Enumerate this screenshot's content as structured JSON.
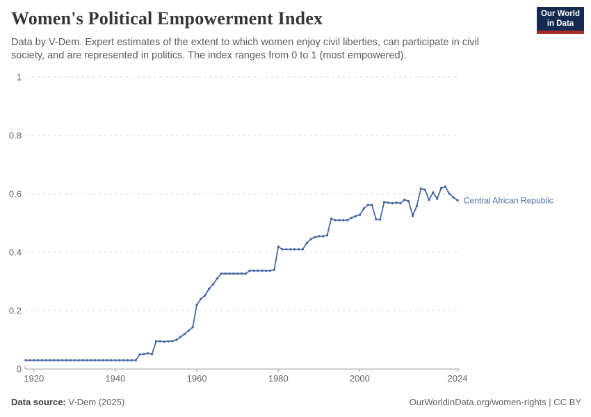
{
  "header": {
    "title": "Women's Political Empowerment Index",
    "subtitle": "Data by V-Dem. Expert estimates of the extent to which women enjoy civil liberties, can participate in civil society, and are represented in politics. The index ranges from 0 to 1 (most empowered)."
  },
  "logo": {
    "line1": "Our World",
    "line2": "in Data",
    "bg_color": "#142a50",
    "accent_color": "#aa2e27"
  },
  "chart_data": {
    "type": "line",
    "title": "Women's Political Empowerment Index",
    "xlabel": "",
    "ylabel": "",
    "x_range": [
      1918,
      2024
    ],
    "ylim": [
      0,
      1
    ],
    "x_ticks": [
      1920,
      1940,
      1960,
      1980,
      2000,
      2024
    ],
    "y_ticks": [
      {
        "v": 0,
        "label": "0"
      },
      {
        "v": 0.2,
        "label": "0.2"
      },
      {
        "v": 0.4,
        "label": "0.4"
      },
      {
        "v": 0.6,
        "label": "0.6"
      },
      {
        "v": 0.8,
        "label": "0.8"
      },
      {
        "v": 1,
        "label": "1"
      }
    ],
    "grid": "horizontal-dashed",
    "legend": "inline-end-label",
    "colors": {
      "line": "#4868a4",
      "gridline": "#dadada",
      "axis": "#9e9e9e",
      "tick_label": "#636363"
    },
    "series": [
      {
        "name": "Central African Republic",
        "points": [
          [
            1918,
            0.03
          ],
          [
            1919,
            0.03
          ],
          [
            1920,
            0.03
          ],
          [
            1921,
            0.03
          ],
          [
            1922,
            0.03
          ],
          [
            1923,
            0.03
          ],
          [
            1924,
            0.03
          ],
          [
            1925,
            0.03
          ],
          [
            1926,
            0.03
          ],
          [
            1927,
            0.03
          ],
          [
            1928,
            0.03
          ],
          [
            1929,
            0.03
          ],
          [
            1930,
            0.03
          ],
          [
            1931,
            0.03
          ],
          [
            1932,
            0.03
          ],
          [
            1933,
            0.03
          ],
          [
            1934,
            0.03
          ],
          [
            1935,
            0.03
          ],
          [
            1936,
            0.03
          ],
          [
            1937,
            0.03
          ],
          [
            1938,
            0.03
          ],
          [
            1939,
            0.03
          ],
          [
            1940,
            0.03
          ],
          [
            1941,
            0.03
          ],
          [
            1942,
            0.03
          ],
          [
            1943,
            0.03
          ],
          [
            1944,
            0.03
          ],
          [
            1945,
            0.03
          ],
          [
            1946,
            0.05
          ],
          [
            1947,
            0.051
          ],
          [
            1948,
            0.054
          ],
          [
            1949,
            0.051
          ],
          [
            1950,
            0.095
          ],
          [
            1951,
            0.095
          ],
          [
            1952,
            0.094
          ],
          [
            1953,
            0.095
          ],
          [
            1954,
            0.096
          ],
          [
            1955,
            0.1
          ],
          [
            1956,
            0.11
          ],
          [
            1957,
            0.12
          ],
          [
            1958,
            0.132
          ],
          [
            1959,
            0.143
          ],
          [
            1960,
            0.22
          ],
          [
            1961,
            0.24
          ],
          [
            1962,
            0.252
          ],
          [
            1963,
            0.275
          ],
          [
            1964,
            0.29
          ],
          [
            1965,
            0.31
          ],
          [
            1966,
            0.327
          ],
          [
            1967,
            0.327
          ],
          [
            1968,
            0.327
          ],
          [
            1969,
            0.327
          ],
          [
            1970,
            0.327
          ],
          [
            1971,
            0.327
          ],
          [
            1972,
            0.327
          ],
          [
            1973,
            0.337
          ],
          [
            1974,
            0.337
          ],
          [
            1975,
            0.337
          ],
          [
            1976,
            0.337
          ],
          [
            1977,
            0.337
          ],
          [
            1978,
            0.337
          ],
          [
            1979,
            0.34
          ],
          [
            1980,
            0.419
          ],
          [
            1981,
            0.41
          ],
          [
            1982,
            0.41
          ],
          [
            1983,
            0.41
          ],
          [
            1984,
            0.41
          ],
          [
            1985,
            0.41
          ],
          [
            1986,
            0.41
          ],
          [
            1987,
            0.432
          ],
          [
            1988,
            0.445
          ],
          [
            1989,
            0.452
          ],
          [
            1990,
            0.455
          ],
          [
            1991,
            0.455
          ],
          [
            1992,
            0.458
          ],
          [
            1993,
            0.515
          ],
          [
            1994,
            0.51
          ],
          [
            1995,
            0.51
          ],
          [
            1996,
            0.51
          ],
          [
            1997,
            0.51
          ],
          [
            1998,
            0.518
          ],
          [
            1999,
            0.524
          ],
          [
            2000,
            0.528
          ],
          [
            2001,
            0.55
          ],
          [
            2002,
            0.562
          ],
          [
            2003,
            0.562
          ],
          [
            2004,
            0.513
          ],
          [
            2005,
            0.512
          ],
          [
            2006,
            0.572
          ],
          [
            2007,
            0.57
          ],
          [
            2008,
            0.568
          ],
          [
            2009,
            0.57
          ],
          [
            2010,
            0.568
          ],
          [
            2011,
            0.58
          ],
          [
            2012,
            0.575
          ],
          [
            2013,
            0.525
          ],
          [
            2014,
            0.558
          ],
          [
            2015,
            0.618
          ],
          [
            2016,
            0.614
          ],
          [
            2017,
            0.58
          ],
          [
            2018,
            0.605
          ],
          [
            2019,
            0.583
          ],
          [
            2020,
            0.62
          ],
          [
            2021,
            0.625
          ],
          [
            2022,
            0.6
          ],
          [
            2023,
            0.588
          ],
          [
            2024,
            0.578
          ]
        ]
      }
    ]
  },
  "footer": {
    "source_label": "Data source:",
    "source_value": "V-Dem (2025)",
    "credit": "OurWorldinData.org/women-rights | CC BY"
  }
}
